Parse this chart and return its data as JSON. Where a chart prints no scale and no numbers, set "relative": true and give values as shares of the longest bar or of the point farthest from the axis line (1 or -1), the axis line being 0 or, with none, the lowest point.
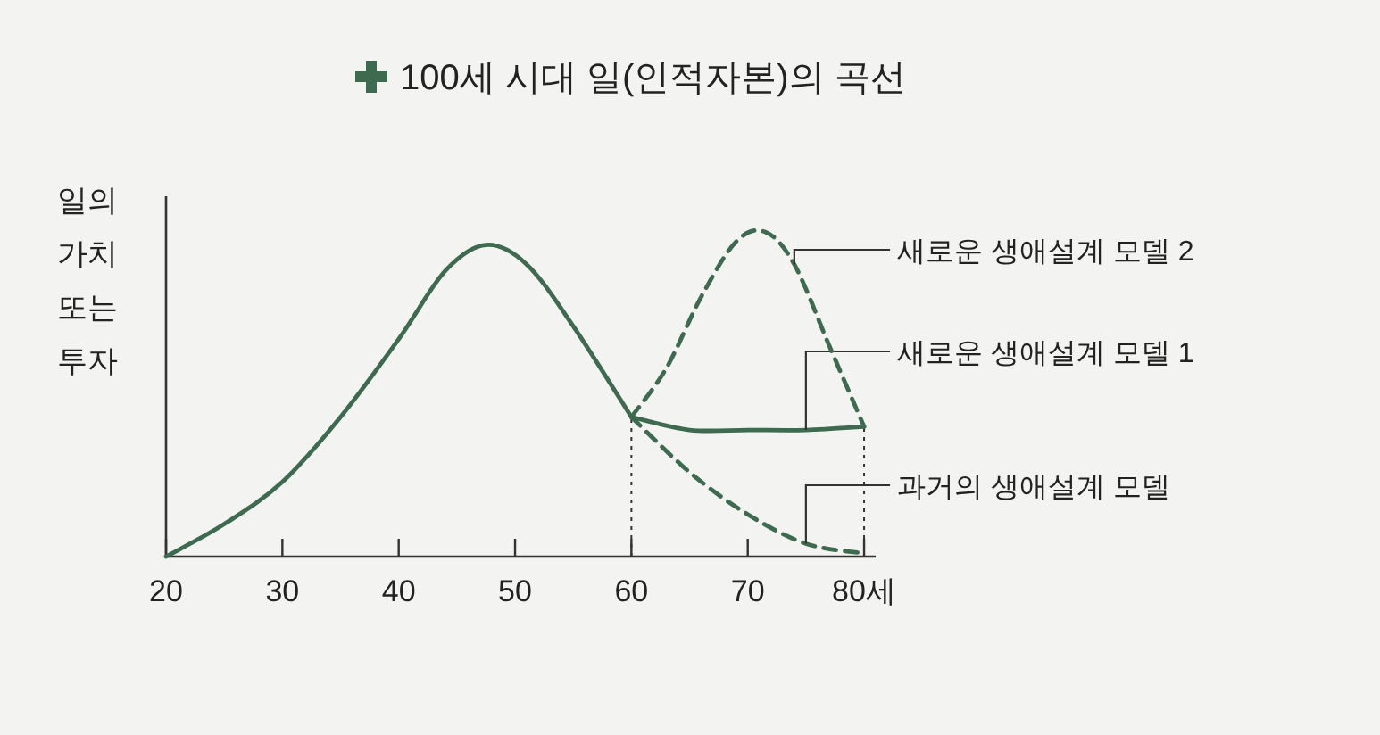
{
  "chart_data": {
    "type": "line",
    "title": "100세 시대 일(인적자본)의 곡선",
    "ylabel": "일의\n가치\n또는\n투자",
    "relative": true,
    "xlim": [
      20,
      81
    ],
    "xticks": [
      20,
      30,
      40,
      50,
      60,
      70,
      {
        "value": 80,
        "label": "80세"
      }
    ],
    "ref_lines": [
      {
        "axis": "x",
        "value": 60,
        "line_style": "dotted",
        "color": "#333333"
      },
      {
        "axis": "x",
        "value": 80,
        "line_style": "dotted",
        "color": "#333333"
      }
    ],
    "series": [
      {
        "color": "#3e6b4f",
        "line_style": "solid",
        "x": [
          20,
          25,
          30,
          35,
          40,
          44,
          47.5,
          51,
          55,
          60
        ],
        "values": [
          0,
          0.1,
          0.23,
          0.43,
          0.67,
          0.88,
          0.96,
          0.9,
          0.71,
          0.43
        ]
      },
      {
        "name": "과거의 생애설계 모델",
        "color": "#3e6b4f",
        "line_style": "dashed",
        "x": [
          60,
          65,
          70,
          75,
          80
        ],
        "values": [
          0.43,
          0.26,
          0.13,
          0.04,
          0.01
        ]
      },
      {
        "name": "새로운 생애설계 모델 1",
        "color": "#3e6b4f",
        "line_style": "solid",
        "x": [
          60,
          65,
          70,
          75,
          80
        ],
        "values": [
          0.43,
          0.39,
          0.39,
          0.39,
          0.4
        ]
      },
      {
        "name": "새로운 생애설계 모델 2",
        "color": "#3e6b4f",
        "line_style": "dashed",
        "x": [
          60,
          63,
          66,
          69,
          71.5,
          74,
          77,
          80
        ],
        "values": [
          0.43,
          0.58,
          0.8,
          0.97,
          1,
          0.9,
          0.65,
          0.4
        ]
      }
    ]
  }
}
